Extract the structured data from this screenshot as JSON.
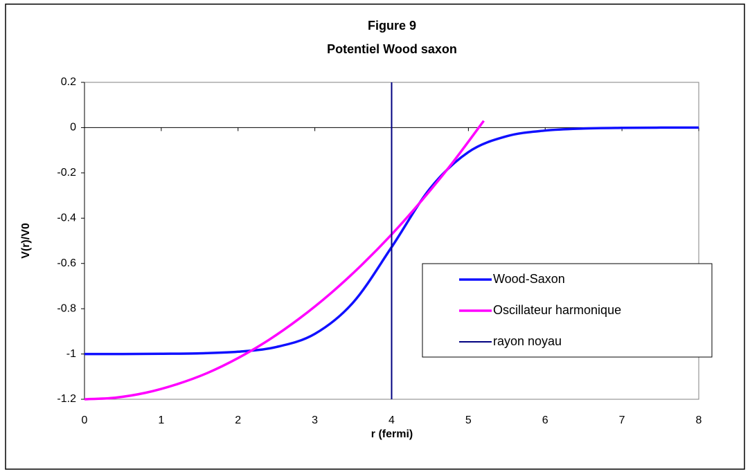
{
  "chart_data": {
    "type": "line",
    "title": "Figure 9",
    "subtitle": "Potentiel Wood saxon",
    "x_label": "r (fermi)",
    "y_label": "V(r)/V0",
    "xlim": [
      0,
      8
    ],
    "xticks": [
      0,
      1,
      2,
      3,
      4,
      5,
      6,
      7,
      8
    ],
    "ylim": [
      -1.2,
      0.2
    ],
    "yticks": [
      -1.2,
      -1,
      -0.8,
      -0.6,
      -0.4,
      -0.2,
      0,
      0.2
    ],
    "legend": "right",
    "series": [
      {
        "name": "Wood-Saxon",
        "color": "#1010ff",
        "x": [
          0,
          0.5,
          1,
          1.5,
          2,
          2.5,
          3,
          3.5,
          4,
          4.5,
          5,
          5.5,
          6,
          6.5,
          7,
          7.5,
          8
        ],
        "values": [
          -1.0,
          -1.0,
          -0.999,
          -0.997,
          -0.99,
          -0.969,
          -0.911,
          -0.772,
          -0.528,
          -0.269,
          -0.108,
          -0.038,
          -0.013,
          -0.004,
          -0.001,
          0,
          0
        ]
      },
      {
        "name": "Oscillateur harmonique",
        "color": "#ff00ff",
        "x": [
          0,
          0.4,
          0.8,
          1.2,
          1.6,
          2.0,
          2.4,
          2.8,
          3.2,
          3.6,
          4.0,
          4.4,
          4.8,
          5.2
        ],
        "values": [
          -1.2,
          -1.193,
          -1.171,
          -1.134,
          -1.084,
          -1.018,
          -0.938,
          -0.843,
          -0.734,
          -0.61,
          -0.472,
          -0.319,
          -0.152,
          0.03
        ]
      },
      {
        "name": "rayon noyau",
        "color": "#000080",
        "x": [
          4,
          4
        ],
        "values": [
          -1.2,
          0.2
        ]
      }
    ]
  }
}
